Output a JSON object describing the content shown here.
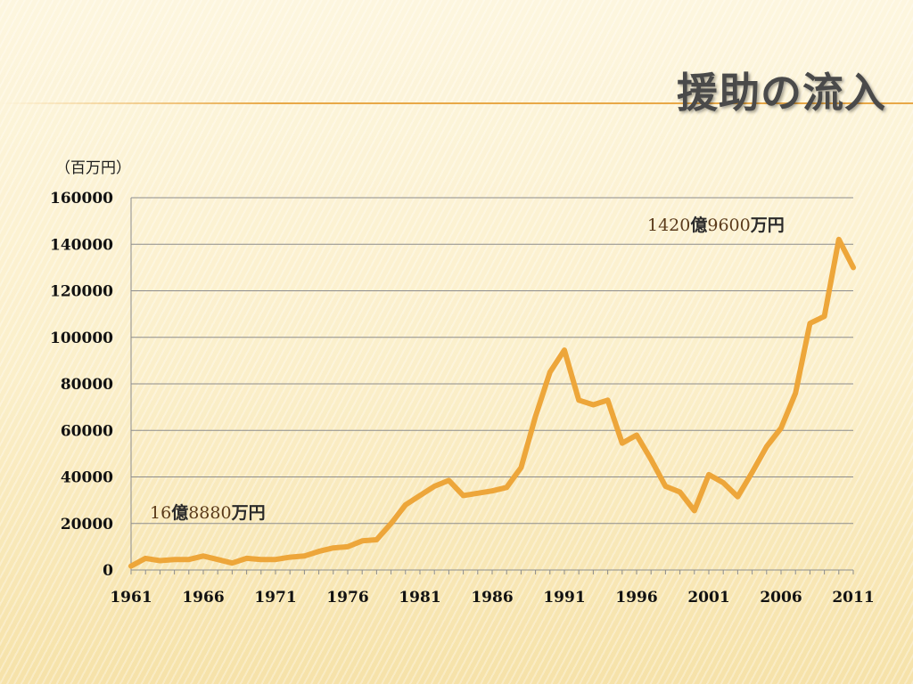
{
  "slide": {
    "title": "援助の流入"
  },
  "chart_data": {
    "type": "line",
    "unit_label": "（百万円）",
    "ylim": [
      0,
      160000
    ],
    "yticks": [
      0,
      20000,
      40000,
      60000,
      80000,
      100000,
      120000,
      140000,
      160000
    ],
    "xlim": [
      1961,
      2011
    ],
    "xticks": [
      1961,
      1966,
      1971,
      1976,
      1981,
      1986,
      1991,
      1996,
      2001,
      2006,
      2011
    ],
    "grid": true,
    "series": [
      {
        "color": "#eda63a",
        "x": [
          1961,
          1962,
          1963,
          1964,
          1965,
          1966,
          1967,
          1968,
          1969,
          1970,
          1971,
          1972,
          1973,
          1974,
          1975,
          1976,
          1977,
          1978,
          1979,
          1980,
          1981,
          1982,
          1983,
          1984,
          1985,
          1986,
          1987,
          1988,
          1989,
          1990,
          1991,
          1992,
          1993,
          1994,
          1995,
          1996,
          1997,
          1998,
          1999,
          2000,
          2001,
          2002,
          2003,
          2004,
          2005,
          2006,
          2007,
          2008,
          2009,
          2010,
          2011
        ],
        "y": [
          1689,
          5000,
          4000,
          4500,
          4500,
          6000,
          4500,
          3000,
          5000,
          4500,
          4500,
          5500,
          6000,
          8000,
          9500,
          10000,
          12500,
          13000,
          20000,
          28000,
          32000,
          36000,
          38500,
          32000,
          33000,
          34000,
          35500,
          44000,
          66000,
          85000,
          94500,
          73000,
          71000,
          73000,
          54500,
          58000,
          47500,
          36000,
          33500,
          25500,
          41000,
          37500,
          31500,
          42000,
          53000,
          61000,
          76000,
          106000,
          109000,
          142096,
          130000
        ]
      }
    ],
    "annotations": [
      {
        "parts": [
          {
            "text": "16",
            "jp": false
          },
          {
            "text": "億",
            "jp": true
          },
          {
            "text": "8880",
            "jp": false
          },
          {
            "text": "万円",
            "jp": true
          }
        ],
        "x": 1961,
        "y": 1689
      },
      {
        "parts": [
          {
            "text": "1420",
            "jp": false
          },
          {
            "text": "億",
            "jp": true
          },
          {
            "text": "9600",
            "jp": false
          },
          {
            "text": "万円",
            "jp": true
          }
        ],
        "x": 2010,
        "y": 142096
      }
    ]
  }
}
